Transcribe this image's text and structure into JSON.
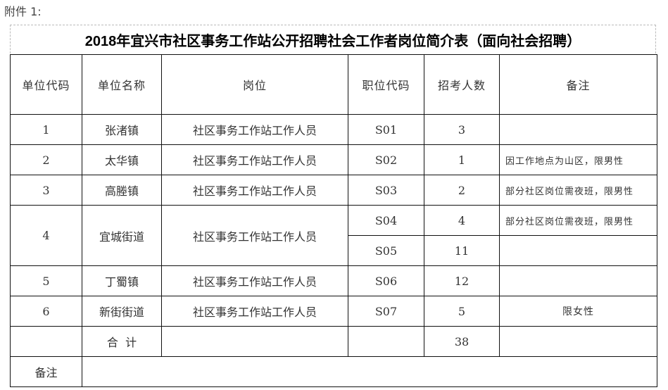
{
  "attachment_label": "附件 1:",
  "title": "2018年宜兴市社区事务工作站公开招聘社会工作者岗位简介表（面向社会招聘）",
  "headers": [
    "单位代码",
    "单位名称",
    "岗位",
    "职位代码",
    "招考人数",
    "备注"
  ],
  "rows": [
    {
      "unit_code": "1",
      "unit_name": "张渚镇",
      "position": "社区事务工作站工作人员",
      "job_code": "S01",
      "count": "3",
      "note": ""
    },
    {
      "unit_code": "2",
      "unit_name": "太华镇",
      "position": "社区事务工作站工作人员",
      "job_code": "S02",
      "count": "1",
      "note": "因工作地点为山区，限男性"
    },
    {
      "unit_code": "3",
      "unit_name": "高塍镇",
      "position": "社区事务工作站工作人员",
      "job_code": "S03",
      "count": "2",
      "note": "部分社区岗位需夜班，限男性"
    },
    {
      "unit_code": "4",
      "unit_name": "宜城街道",
      "position": "社区事务工作站工作人员",
      "job_code": "S04",
      "count": "4",
      "note": "部分社区岗位需夜班，限男性"
    },
    {
      "job_code": "S05",
      "count": "11",
      "note": ""
    },
    {
      "unit_code": "5",
      "unit_name": "丁蜀镇",
      "position": "社区事务工作站工作人员",
      "job_code": "S06",
      "count": "12",
      "note": ""
    },
    {
      "unit_code": "6",
      "unit_name": "新街街道",
      "position": "社区事务工作站工作人员",
      "job_code": "S07",
      "count": "5",
      "note": "限女性"
    }
  ],
  "total": {
    "label": "合  计",
    "count": "38"
  },
  "remarks_label": "备注"
}
